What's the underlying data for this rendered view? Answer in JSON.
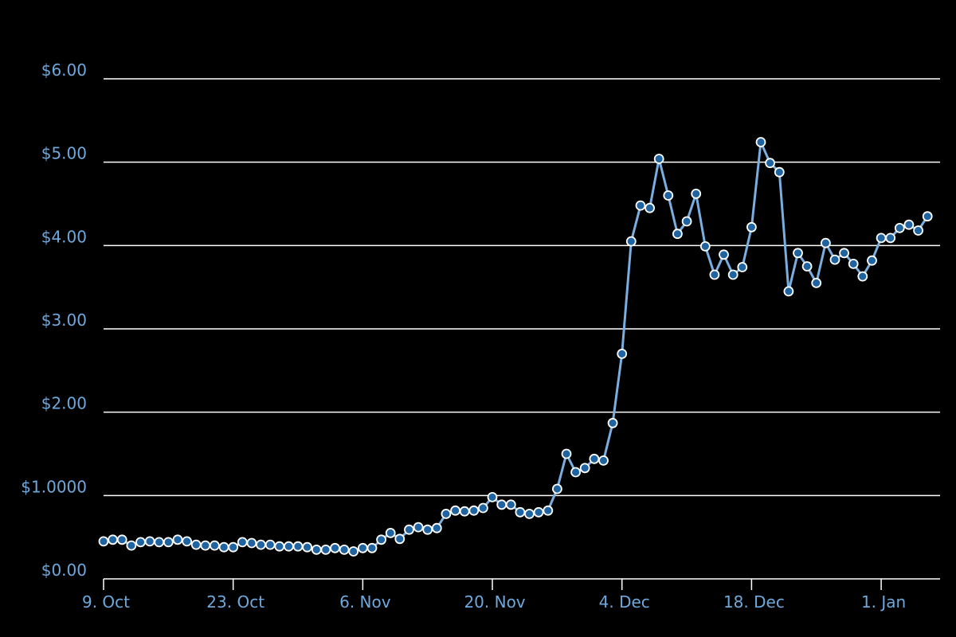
{
  "chart_data": {
    "type": "line",
    "title": "",
    "xlabel": "",
    "ylabel": "",
    "x_start": "9. Oct",
    "x_interval_days": 1,
    "values": [
      0.45,
      0.47,
      0.47,
      0.4,
      0.44,
      0.45,
      0.44,
      0.44,
      0.47,
      0.45,
      0.41,
      0.4,
      0.4,
      0.38,
      0.38,
      0.44,
      0.43,
      0.41,
      0.41,
      0.39,
      0.39,
      0.39,
      0.38,
      0.35,
      0.35,
      0.37,
      0.35,
      0.33,
      0.37,
      0.37,
      0.47,
      0.55,
      0.48,
      0.59,
      0.62,
      0.59,
      0.61,
      0.78,
      0.82,
      0.81,
      0.82,
      0.85,
      0.98,
      0.89,
      0.89,
      0.8,
      0.78,
      0.8,
      0.82,
      1.08,
      1.5,
      1.28,
      1.33,
      1.44,
      1.42,
      1.87,
      2.7,
      4.05,
      4.48,
      4.45,
      5.04,
      4.6,
      4.14,
      4.29,
      4.62,
      3.99,
      3.65,
      3.89,
      3.65,
      3.74,
      4.22,
      5.24,
      4.99,
      4.88,
      3.45,
      3.91,
      3.75,
      3.55,
      4.03,
      3.83,
      3.91,
      3.78,
      3.63,
      3.82,
      4.09,
      4.09,
      4.21,
      4.25,
      4.18,
      4.35
    ],
    "x_tick_labels": [
      "9. Oct",
      "23. Oct",
      "6. Nov",
      "20. Nov",
      "4. Dec",
      "18. Dec",
      "1. Jan"
    ],
    "x_tick_offsets_days": [
      0,
      14,
      28,
      42,
      56,
      70,
      84
    ],
    "y_tick_labels": [
      "$0.00",
      "$1.0000",
      "$2.00",
      "$3.00",
      "$4.00",
      "$5.00",
      "$6.00"
    ],
    "y_tick_values": [
      0,
      1,
      2,
      3,
      4,
      5,
      6
    ],
    "ylim": [
      0,
      6
    ],
    "grid": true,
    "legend": "none",
    "colors": {
      "background": "#000000",
      "gridline": "#ffffff",
      "axis": "#ffffff",
      "line": "#7aaee0",
      "marker_fill": "#1f63a0",
      "marker_stroke": "#ffffff",
      "tick_label": "#6ea8dc"
    }
  }
}
